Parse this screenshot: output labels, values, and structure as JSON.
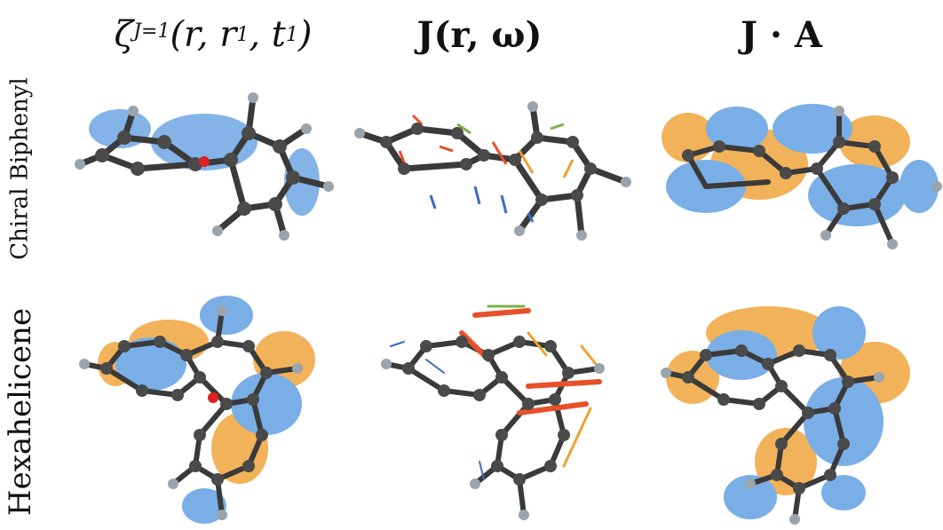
{
  "headers": [
    {
      "key": "zeta",
      "base": "ζ",
      "sup": "J=1",
      "args": "(r, r",
      "sub": "1",
      "mid": ", t",
      "sub2": "1",
      "end": ")"
    },
    {
      "key": "current",
      "text": "J(r, ω)"
    },
    {
      "key": "dot",
      "text": "J · A"
    }
  ],
  "rows": [
    {
      "label": "Chiral Biphenyl"
    },
    {
      "label": "Hexahelicene"
    }
  ],
  "colors": {
    "bond": "#3a3a3a",
    "atom_c": "#4a4a4a",
    "atom_h": "#9aa4ad",
    "iso_blue": "#5a9ae0",
    "iso_orange": "#f0a030",
    "arrow_red": "#e8502a",
    "arrow_green": "#7ab048",
    "arrow_blue": "#3a6ec0",
    "origin_dot": "#e02020"
  }
}
